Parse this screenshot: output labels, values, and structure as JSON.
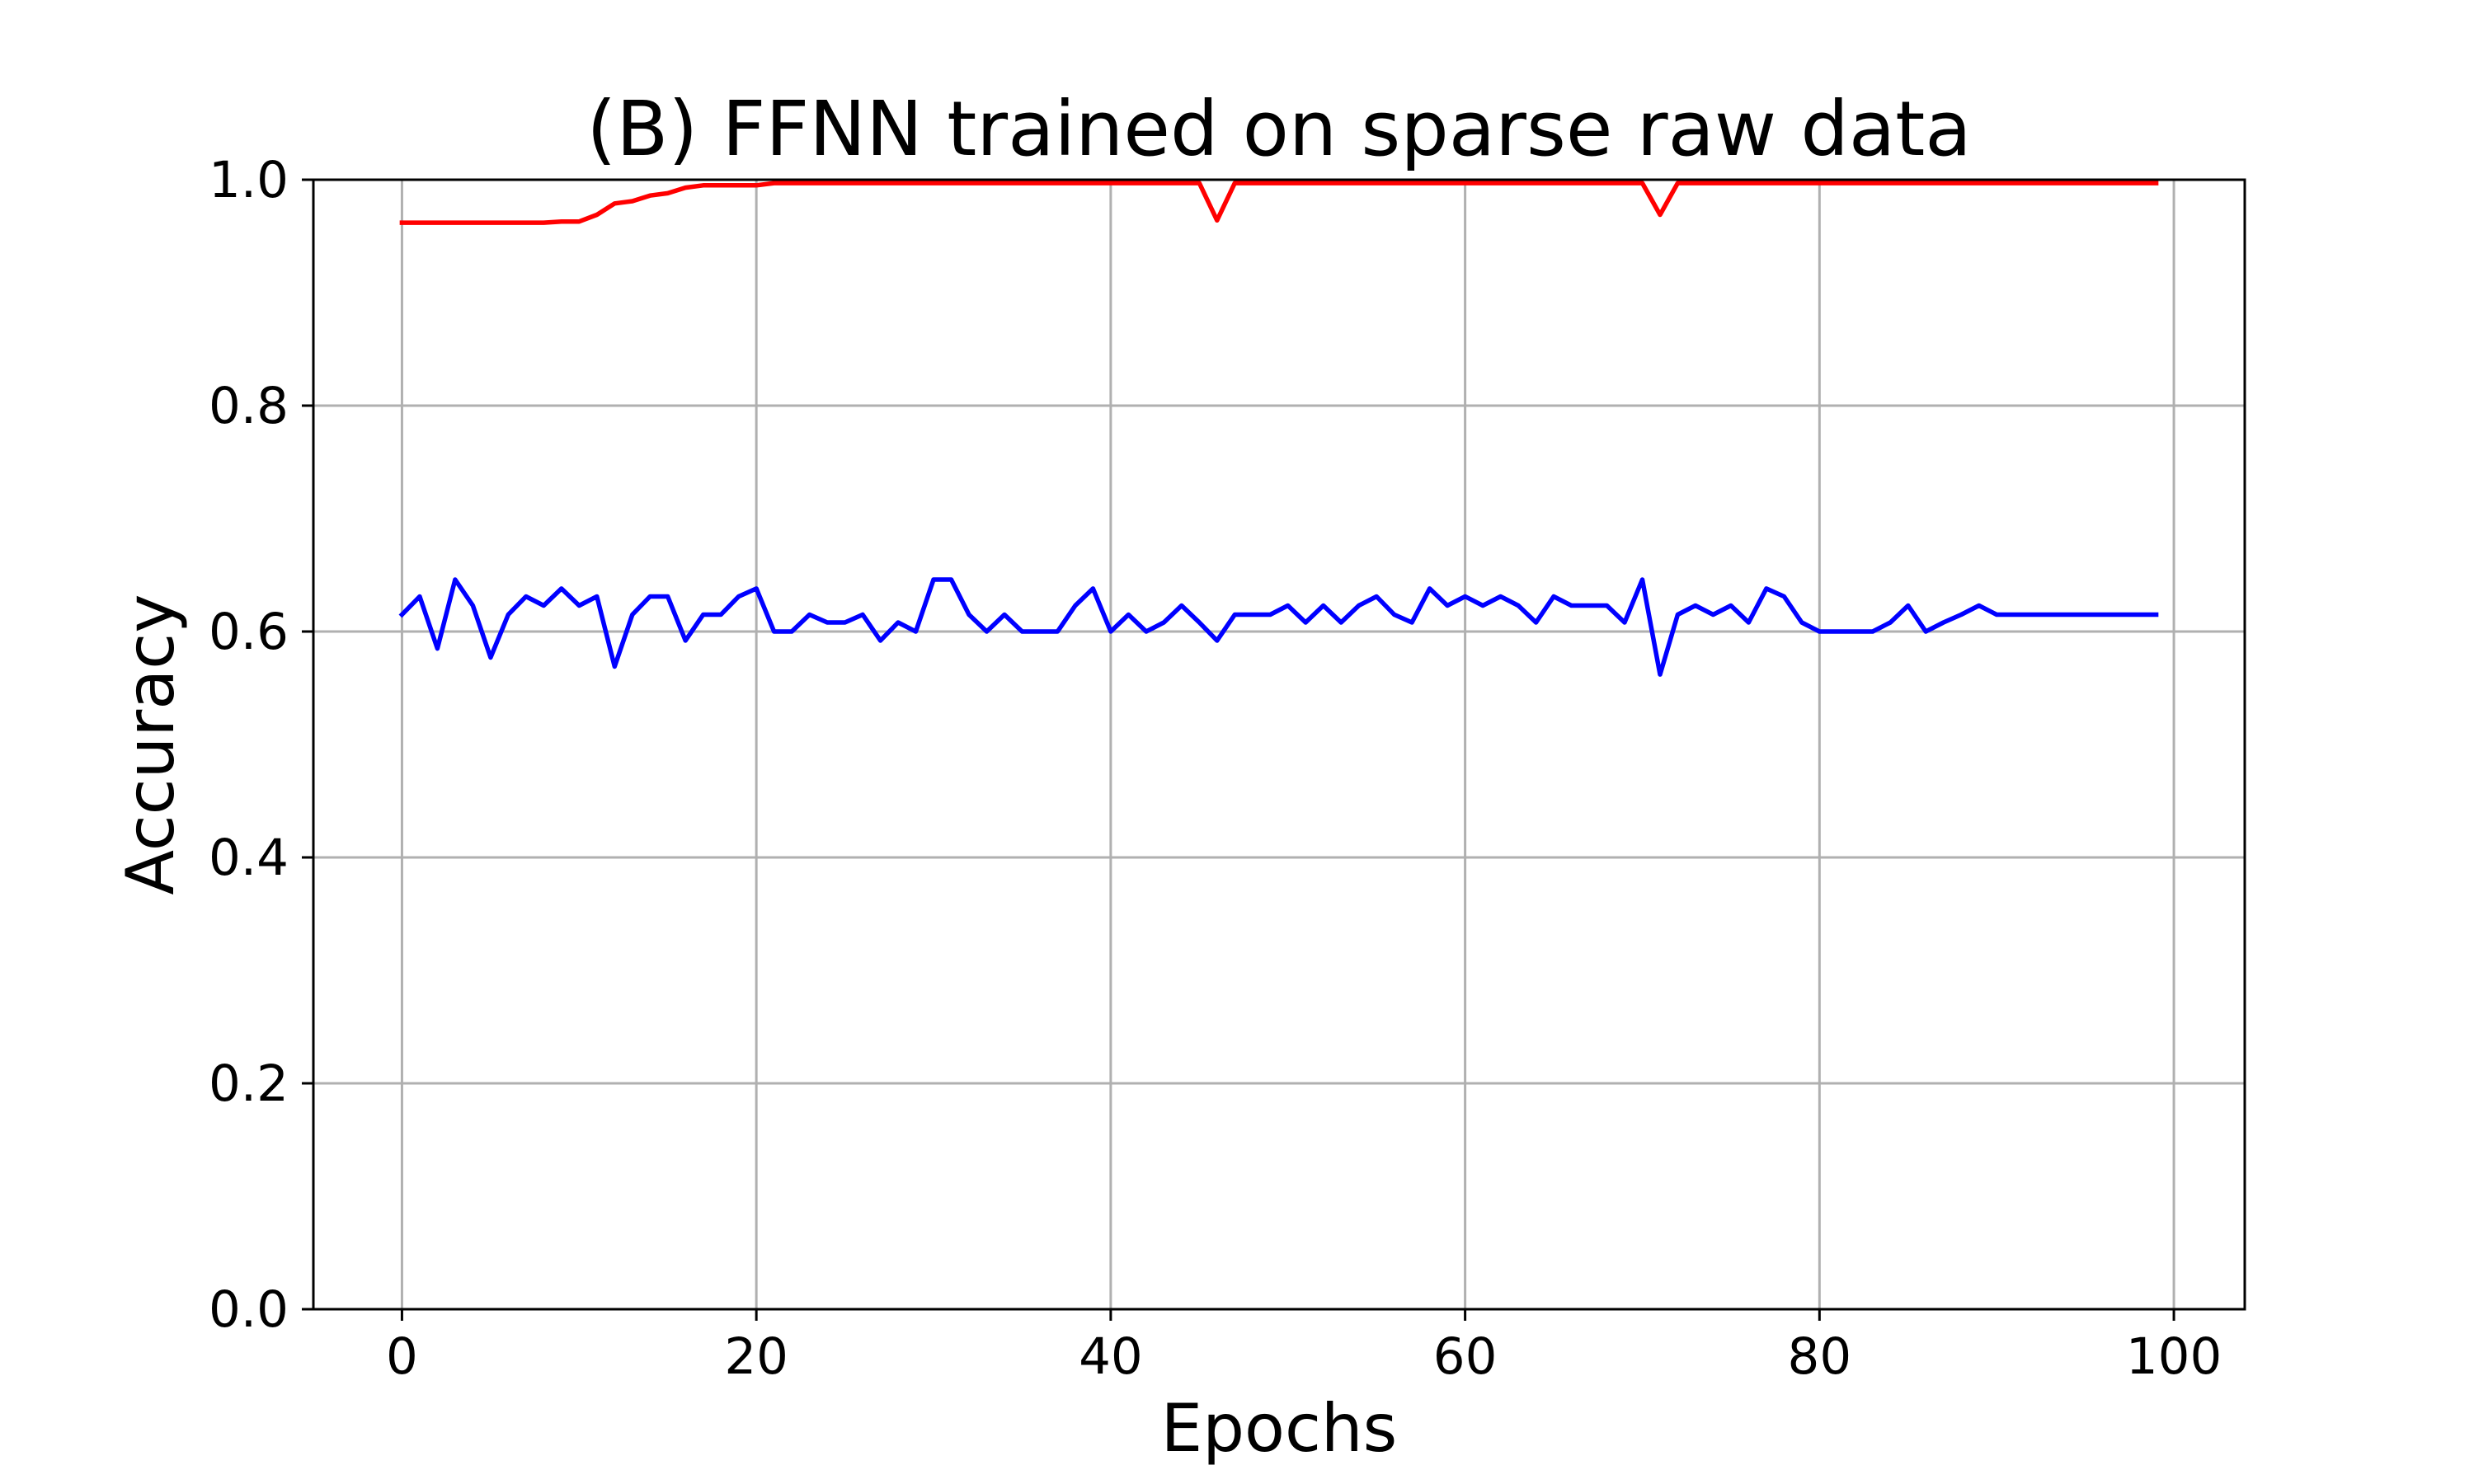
{
  "chart_data": {
    "type": "line",
    "title": "(B) FFNN trained on sparse raw data",
    "xlabel": "Epochs",
    "ylabel": "Accuracy",
    "xlim": [
      -5,
      104
    ],
    "ylim": [
      0.0,
      1.0
    ],
    "xticks": [
      "0",
      "20",
      "40",
      "60",
      "80",
      "100"
    ],
    "yticks": [
      "0.0",
      "0.2",
      "0.4",
      "0.6",
      "0.8",
      "1.0"
    ],
    "grid": true,
    "legend": "none",
    "x": [
      0,
      1,
      2,
      3,
      4,
      5,
      6,
      7,
      8,
      9,
      10,
      11,
      12,
      13,
      14,
      15,
      16,
      17,
      18,
      19,
      20,
      21,
      22,
      23,
      24,
      25,
      26,
      27,
      28,
      29,
      30,
      31,
      32,
      33,
      34,
      35,
      36,
      37,
      38,
      39,
      40,
      41,
      42,
      43,
      44,
      45,
      46,
      47,
      48,
      49,
      50,
      51,
      52,
      53,
      54,
      55,
      56,
      57,
      58,
      59,
      60,
      61,
      62,
      63,
      64,
      65,
      66,
      67,
      68,
      69,
      70,
      71,
      72,
      73,
      74,
      75,
      76,
      77,
      78,
      79,
      80,
      81,
      82,
      83,
      84,
      85,
      86,
      87,
      88,
      89,
      90,
      91,
      92,
      93,
      94,
      95,
      96,
      97,
      98,
      99
    ],
    "series": [
      {
        "color": "#ff0000",
        "values": [
          0.962,
          0.962,
          0.962,
          0.962,
          0.962,
          0.962,
          0.962,
          0.962,
          0.962,
          0.963,
          0.963,
          0.969,
          0.979,
          0.981,
          0.986,
          0.988,
          0.993,
          0.995,
          0.995,
          0.995,
          0.995,
          0.997,
          0.997,
          0.997,
          0.997,
          0.997,
          0.997,
          0.997,
          0.997,
          0.997,
          0.997,
          0.997,
          0.997,
          0.997,
          0.997,
          0.997,
          0.997,
          0.997,
          0.997,
          0.997,
          0.997,
          0.997,
          0.997,
          0.997,
          0.997,
          0.997,
          0.964,
          0.997,
          0.997,
          0.997,
          0.997,
          0.997,
          0.997,
          0.997,
          0.997,
          0.997,
          0.997,
          0.997,
          0.997,
          0.997,
          0.997,
          0.997,
          0.997,
          0.997,
          0.997,
          0.997,
          0.997,
          0.997,
          0.997,
          0.997,
          0.997,
          0.969,
          0.997,
          0.997,
          0.997,
          0.997,
          0.997,
          0.997,
          0.997,
          0.997,
          0.997,
          0.997,
          0.997,
          0.997,
          0.997,
          0.997,
          0.997,
          0.997,
          0.997,
          0.997,
          0.997,
          0.997,
          0.997,
          0.997,
          0.997,
          0.997,
          0.997,
          0.997,
          0.997,
          0.997
        ]
      },
      {
        "color": "#0000ff",
        "values": [
          0.615,
          0.631,
          0.585,
          0.646,
          0.623,
          0.577,
          0.615,
          0.631,
          0.623,
          0.638,
          0.623,
          0.631,
          0.569,
          0.615,
          0.631,
          0.631,
          0.592,
          0.615,
          0.615,
          0.631,
          0.638,
          0.6,
          0.6,
          0.615,
          0.608,
          0.608,
          0.615,
          0.592,
          0.608,
          0.6,
          0.646,
          0.646,
          0.615,
          0.6,
          0.615,
          0.6,
          0.6,
          0.6,
          0.623,
          0.638,
          0.6,
          0.615,
          0.6,
          0.608,
          0.623,
          0.608,
          0.592,
          0.615,
          0.615,
          0.615,
          0.623,
          0.608,
          0.623,
          0.608,
          0.623,
          0.631,
          0.615,
          0.608,
          0.638,
          0.623,
          0.631,
          0.623,
          0.631,
          0.623,
          0.608,
          0.631,
          0.623,
          0.623,
          0.623,
          0.608,
          0.646,
          0.562,
          0.615,
          0.623,
          0.615,
          0.623,
          0.608,
          0.638,
          0.631,
          0.608,
          0.6,
          0.6,
          0.6,
          0.6,
          0.608,
          0.623,
          0.6,
          0.608,
          0.615,
          0.623,
          0.615,
          0.615,
          0.615,
          0.615,
          0.615,
          0.615,
          0.615,
          0.615,
          0.615,
          0.615
        ]
      }
    ]
  }
}
